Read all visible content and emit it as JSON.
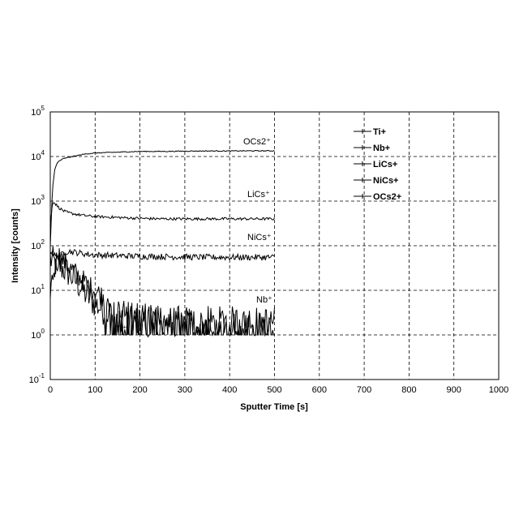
{
  "chart_data": {
    "type": "line",
    "xlabel": "Sputter Time [s]",
    "ylabel": "Intensity [counts]",
    "xlim": [
      0,
      1000
    ],
    "xticks": [
      0,
      100,
      200,
      300,
      400,
      500,
      600,
      700,
      800,
      900,
      1000
    ],
    "ylim_log10": [
      -1,
      5
    ],
    "yscale": "log",
    "yticks": [
      {
        "base": "10",
        "exp": "-1"
      },
      {
        "base": "10",
        "exp": "0"
      },
      {
        "base": "10",
        "exp": "1"
      },
      {
        "base": "10",
        "exp": "2"
      },
      {
        "base": "10",
        "exp": "3"
      },
      {
        "base": "10",
        "exp": "4"
      },
      {
        "base": "10",
        "exp": "5"
      }
    ],
    "grid": "dashed",
    "legend_placement": "top-right",
    "series": [
      {
        "name": "Ti+",
        "annotation": "Ti⁺",
        "x": [
          0,
          10,
          20,
          30,
          40,
          60,
          80,
          100,
          130,
          160,
          200,
          250,
          300,
          350,
          400,
          450,
          500
        ],
        "y": [
          50,
          40,
          35,
          30,
          25,
          15,
          8,
          5,
          3,
          2,
          2,
          2,
          2,
          2,
          2,
          2,
          2
        ]
      },
      {
        "name": "Nb+",
        "annotation": "Nb⁺",
        "x": [
          0,
          5,
          10,
          20,
          30,
          40,
          50,
          60,
          70,
          80,
          100,
          120,
          150,
          200,
          250,
          300,
          350,
          400,
          450,
          500
        ],
        "y": [
          10,
          20,
          30,
          60,
          45,
          35,
          28,
          22,
          18,
          14,
          10,
          7,
          4,
          3,
          2.5,
          2,
          2,
          2,
          2,
          2
        ]
      },
      {
        "name": "LiCs+",
        "annotation": "LiCs⁺",
        "x": [
          0,
          5,
          10,
          20,
          30,
          40,
          60,
          80,
          100,
          150,
          200,
          250,
          300,
          350,
          400,
          450,
          500
        ],
        "y": [
          250,
          1000,
          900,
          700,
          600,
          550,
          500,
          470,
          450,
          430,
          410,
          400,
          400,
          400,
          400,
          400,
          400
        ]
      },
      {
        "name": "NiCs+",
        "annotation": "NiCs⁺",
        "x": [
          0,
          10,
          20,
          30,
          40,
          60,
          80,
          100,
          150,
          200,
          250,
          300,
          350,
          400,
          450,
          500
        ],
        "y": [
          80,
          60,
          55,
          70,
          75,
          70,
          65,
          62,
          60,
          58,
          57,
          56,
          55,
          55,
          55,
          55
        ]
      },
      {
        "name": "OCs2+",
        "annotation": "OCs2⁺",
        "x": [
          0,
          5,
          10,
          15,
          20,
          30,
          40,
          60,
          80,
          100,
          150,
          200,
          250,
          300,
          350,
          400,
          450,
          500
        ],
        "y": [
          100,
          2000,
          5000,
          7000,
          8000,
          9000,
          9500,
          10500,
          11500,
          12000,
          12500,
          13000,
          13000,
          13200,
          13300,
          13300,
          13400,
          13400
        ]
      }
    ]
  }
}
